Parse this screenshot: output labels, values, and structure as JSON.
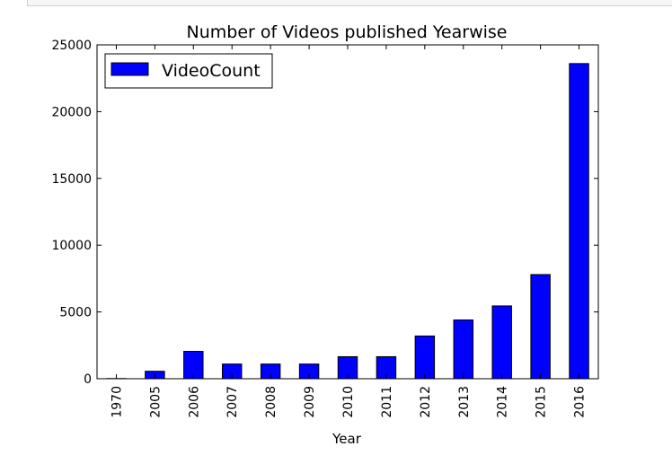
{
  "chart_data": {
    "type": "bar",
    "title": "Number of Videos published Yearwise",
    "xlabel": "Year",
    "ylabel": "",
    "categories": [
      "1970",
      "2005",
      "2006",
      "2007",
      "2008",
      "2009",
      "2010",
      "2011",
      "2012",
      "2013",
      "2014",
      "2015",
      "2016"
    ],
    "series": [
      {
        "name": "VideoCount",
        "values": [
          15,
          560,
          2050,
          1100,
          1100,
          1100,
          1650,
          1650,
          3200,
          4400,
          5450,
          7800,
          23600
        ]
      }
    ],
    "ylim": [
      0,
      25000
    ],
    "yticks": [
      0,
      5000,
      10000,
      15000,
      20000,
      25000
    ],
    "grid": false,
    "legend_position": "top-left",
    "bar_color": "#0000ff",
    "edge_color": "#000000"
  }
}
